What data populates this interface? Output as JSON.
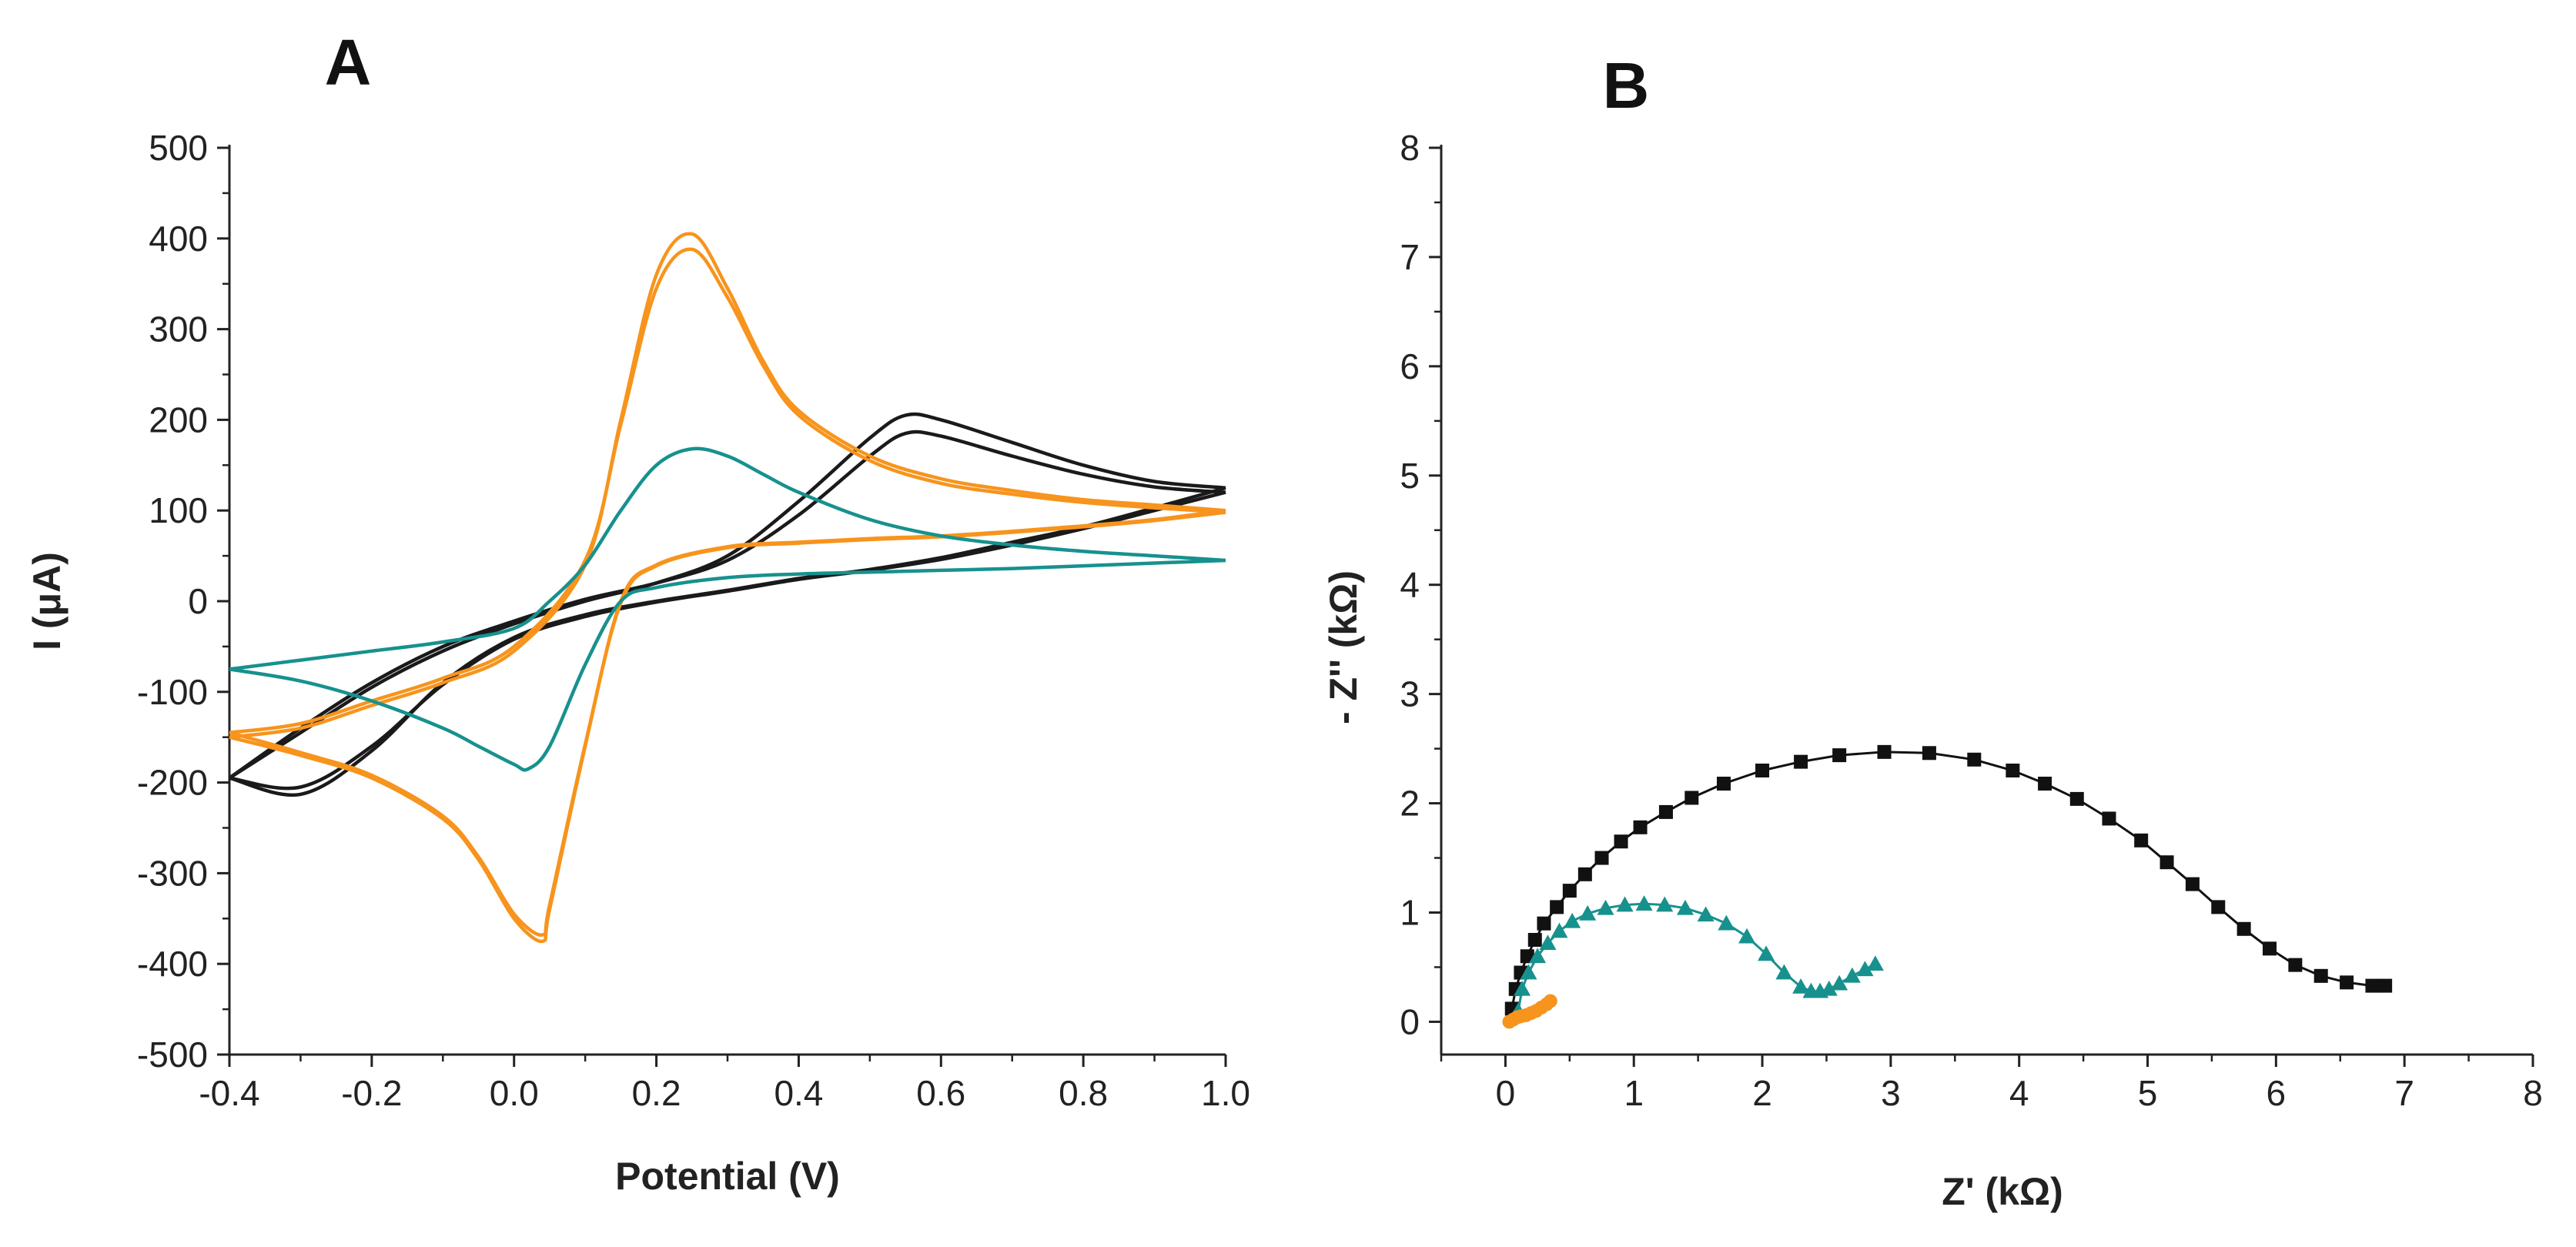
{
  "chart_data": [
    {
      "panel": "A",
      "type": "line",
      "title": "",
      "xlabel": "Potential (V)",
      "ylabel": "I (μA)",
      "xlim": [
        -0.4,
        1.0
      ],
      "ylim": [
        -500,
        500
      ],
      "xticks": [
        -0.4,
        -0.2,
        0.0,
        0.2,
        0.4,
        0.6,
        0.8,
        1.0
      ],
      "xtick_labels": [
        "-0.4",
        "-0.2",
        "0.0",
        "0.2",
        "0.4",
        "0.6",
        "0.8",
        "1.0"
      ],
      "yticks": [
        -500,
        -400,
        -300,
        -200,
        -100,
        0,
        100,
        200,
        300,
        400,
        500
      ],
      "ytick_labels": [
        "-500",
        "-400",
        "-300",
        "-200",
        "-100",
        "0",
        "100",
        "200",
        "300",
        "400",
        "500"
      ],
      "grid": false,
      "colors": {
        "black": "#1a1a1a",
        "orange": "#f7941d",
        "teal": "#17918e"
      },
      "series": [
        {
          "name": "black cycle 1",
          "color": "black",
          "anodic": {
            "x": [
              -0.4,
              -0.3,
              -0.2,
              -0.1,
              0.0,
              0.1,
              0.2,
              0.3,
              0.4,
              0.5,
              0.55,
              0.6,
              0.7,
              0.8,
              0.9,
              1.0
            ],
            "y": [
              -195,
              -145,
              -95,
              -55,
              -25,
              0,
              20,
              50,
              110,
              180,
              205,
              200,
              175,
              150,
              132,
              125
            ]
          },
          "cathodic": {
            "x": [
              1.0,
              0.9,
              0.8,
              0.7,
              0.6,
              0.5,
              0.4,
              0.3,
              0.2,
              0.1,
              0.0,
              -0.1,
              -0.2,
              -0.3,
              -0.4
            ],
            "y": [
              125,
              103,
              82,
              65,
              48,
              35,
              25,
              12,
              0,
              -15,
              -40,
              -90,
              -165,
              -213,
              -195
            ]
          }
        },
        {
          "name": "black cycle 2",
          "color": "black",
          "anodic": {
            "x": [
              -0.4,
              -0.3,
              -0.2,
              -0.1,
              0.0,
              0.1,
              0.2,
              0.3,
              0.4,
              0.5,
              0.55,
              0.6,
              0.7,
              0.8,
              0.9,
              1.0
            ],
            "y": [
              -195,
              -140,
              -90,
              -50,
              -22,
              2,
              20,
              45,
              95,
              160,
              185,
              182,
              160,
              140,
              126,
              120
            ]
          },
          "cathodic": {
            "x": [
              1.0,
              0.9,
              0.8,
              0.7,
              0.6,
              0.5,
              0.4,
              0.3,
              0.2,
              0.1,
              0.0,
              -0.1,
              -0.2,
              -0.3,
              -0.4
            ],
            "y": [
              120,
              100,
              80,
              62,
              46,
              34,
              24,
              11,
              -1,
              -17,
              -42,
              -92,
              -160,
              -205,
              -195
            ]
          }
        },
        {
          "name": "orange cycle 1",
          "color": "orange",
          "anodic": {
            "x": [
              -0.4,
              -0.3,
              -0.2,
              -0.1,
              0.0,
              0.1,
              0.15,
              0.2,
              0.25,
              0.3,
              0.35,
              0.4,
              0.5,
              0.6,
              0.7,
              0.8,
              0.9,
              1.0
            ],
            "y": [
              -150,
              -140,
              -115,
              -90,
              -55,
              40,
              200,
              360,
              405,
              345,
              265,
              210,
              160,
              135,
              122,
              112,
              106,
              100
            ]
          },
          "cathodic": {
            "x": [
              1.0,
              0.9,
              0.8,
              0.7,
              0.6,
              0.5,
              0.4,
              0.3,
              0.2,
              0.15,
              0.1,
              0.05,
              0.04,
              0.0,
              -0.05,
              -0.1,
              -0.2,
              -0.3,
              -0.4
            ],
            "y": [
              100,
              90,
              83,
              77,
              72,
              69,
              65,
              60,
              40,
              0,
              -160,
              -340,
              -375,
              -350,
              -285,
              -240,
              -195,
              -170,
              -150
            ]
          }
        },
        {
          "name": "orange cycle 2",
          "color": "orange",
          "anodic": {
            "x": [
              -0.4,
              -0.3,
              -0.2,
              -0.1,
              0.0,
              0.1,
              0.15,
              0.2,
              0.25,
              0.3,
              0.35,
              0.4,
              0.5,
              0.6,
              0.7,
              0.8,
              0.9,
              1.0
            ],
            "y": [
              -145,
              -135,
              -110,
              -85,
              -50,
              45,
              195,
              345,
              388,
              335,
              260,
              205,
              155,
              130,
              118,
              109,
              103,
              98
            ]
          },
          "cathodic": {
            "x": [
              1.0,
              0.9,
              0.8,
              0.7,
              0.6,
              0.5,
              0.4,
              0.3,
              0.2,
              0.15,
              0.1,
              0.05,
              0.04,
              0.0,
              -0.05,
              -0.1,
              -0.2,
              -0.3,
              -0.4
            ],
            "y": [
              98,
              89,
              82,
              76,
              71,
              68,
              64,
              59,
              39,
              -2,
              -158,
              -335,
              -368,
              -345,
              -282,
              -237,
              -192,
              -167,
              -145
            ]
          }
        },
        {
          "name": "teal",
          "color": "teal",
          "anodic": {
            "x": [
              -0.4,
              -0.3,
              -0.2,
              -0.1,
              0.0,
              0.05,
              0.1,
              0.15,
              0.2,
              0.25,
              0.3,
              0.35,
              0.4,
              0.5,
              0.6,
              0.7,
              0.8,
              0.9,
              1.0
            ],
            "y": [
              -75,
              -65,
              -55,
              -45,
              -30,
              0,
              40,
              100,
              150,
              168,
              160,
              140,
              120,
              90,
              72,
              62,
              55,
              50,
              45
            ]
          },
          "cathodic": {
            "x": [
              1.0,
              0.9,
              0.8,
              0.7,
              0.6,
              0.5,
              0.4,
              0.3,
              0.2,
              0.15,
              0.1,
              0.05,
              0.02,
              0.0,
              -0.05,
              -0.1,
              -0.2,
              -0.3,
              -0.4
            ],
            "y": [
              45,
              42,
              39,
              36,
              34,
              32,
              30,
              26,
              15,
              0,
              -70,
              -160,
              -185,
              -180,
              -160,
              -140,
              -110,
              -88,
              -75
            ]
          }
        }
      ]
    },
    {
      "panel": "B",
      "type": "scatter",
      "title": "",
      "xlabel": "Z' (kΩ)",
      "ylabel": "- Z'' (kΩ)",
      "xlim": [
        -0.5,
        8
      ],
      "ylim": [
        -0.3,
        8
      ],
      "xticks": [
        0,
        1,
        2,
        3,
        4,
        5,
        6,
        7,
        8
      ],
      "xtick_labels": [
        "0",
        "1",
        "2",
        "3",
        "4",
        "5",
        "6",
        "7",
        "8"
      ],
      "yticks": [
        0,
        1,
        2,
        3,
        4,
        5,
        6,
        7,
        8
      ],
      "ytick_labels": [
        "0",
        "1",
        "2",
        "3",
        "4",
        "5",
        "6",
        "7",
        "8"
      ],
      "grid": false,
      "colors": {
        "black": "#111111",
        "orange": "#f7941d",
        "teal": "#17918e"
      },
      "series": [
        {
          "name": "black squares",
          "marker": "square",
          "color": "black",
          "line": true,
          "x": [
            0.05,
            0.08,
            0.12,
            0.17,
            0.23,
            0.3,
            0.4,
            0.5,
            0.62,
            0.75,
            0.9,
            1.05,
            1.25,
            1.45,
            1.7,
            2.0,
            2.3,
            2.6,
            2.95,
            3.3,
            3.65,
            3.95,
            4.2,
            4.45,
            4.7,
            4.95,
            5.15,
            5.35,
            5.55,
            5.75,
            5.95,
            6.15,
            6.35,
            6.55,
            6.75,
            6.85
          ],
          "y": [
            0.12,
            0.3,
            0.45,
            0.6,
            0.75,
            0.9,
            1.05,
            1.2,
            1.35,
            1.5,
            1.65,
            1.78,
            1.92,
            2.05,
            2.18,
            2.3,
            2.38,
            2.44,
            2.47,
            2.46,
            2.4,
            2.3,
            2.18,
            2.04,
            1.86,
            1.66,
            1.46,
            1.26,
            1.05,
            0.85,
            0.67,
            0.52,
            0.42,
            0.36,
            0.33,
            0.33
          ]
        },
        {
          "name": "teal triangles",
          "marker": "triangle",
          "color": "teal",
          "line": true,
          "x": [
            0.1,
            0.13,
            0.18,
            0.25,
            0.33,
            0.42,
            0.52,
            0.64,
            0.78,
            0.93,
            1.08,
            1.24,
            1.4,
            1.56,
            1.72,
            1.88,
            2.03,
            2.17,
            2.3,
            2.38,
            2.45,
            2.52,
            2.6,
            2.7,
            2.8,
            2.88
          ],
          "y": [
            0.1,
            0.3,
            0.45,
            0.6,
            0.72,
            0.83,
            0.92,
            0.99,
            1.04,
            1.07,
            1.08,
            1.07,
            1.04,
            0.98,
            0.9,
            0.78,
            0.62,
            0.45,
            0.32,
            0.28,
            0.28,
            0.3,
            0.35,
            0.42,
            0.48,
            0.53
          ]
        },
        {
          "name": "orange circles",
          "marker": "circle",
          "color": "orange",
          "line": true,
          "x": [
            0.03,
            0.06,
            0.09,
            0.12,
            0.16,
            0.2,
            0.24,
            0.28,
            0.32,
            0.35
          ],
          "y": [
            0.0,
            0.02,
            0.04,
            0.05,
            0.06,
            0.08,
            0.1,
            0.13,
            0.16,
            0.19
          ]
        }
      ]
    }
  ]
}
